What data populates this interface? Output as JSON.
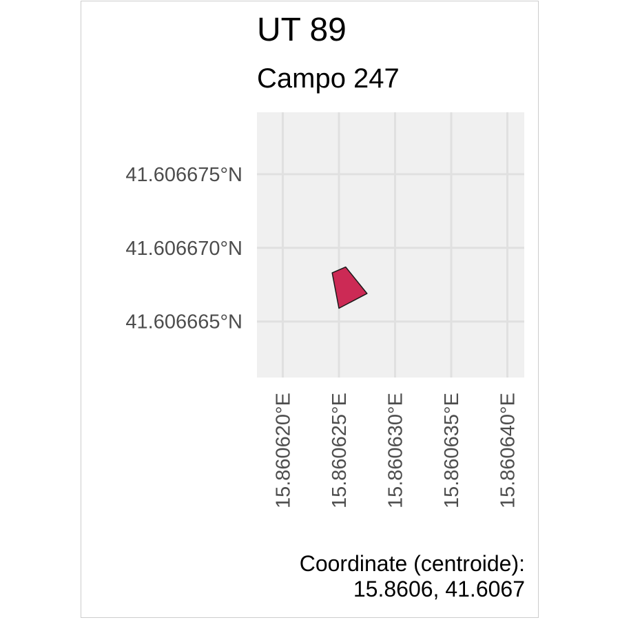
{
  "title": "UT 89",
  "subtitle": "Campo 247",
  "caption": {
    "line1": "Coordinate (centroide):",
    "line2": "15.8606, 41.6067"
  },
  "colors": {
    "panel_background": "#f0f0f0",
    "grid": "#e0e0e0",
    "polygon_fill": "#cc2a55",
    "polygon_stroke": "#1a1a1a"
  },
  "chart_data": {
    "type": "map",
    "xlim": [
      15.8606177,
      15.8606415
    ],
    "ylim": [
      41.6066612,
      41.6066792
    ],
    "x_ticks": [
      {
        "value": 15.86062,
        "label": "15.860620°E"
      },
      {
        "value": 15.860625,
        "label": "15.860625°E"
      },
      {
        "value": 15.86063,
        "label": "15.860630°E"
      },
      {
        "value": 15.860635,
        "label": "15.860635°E"
      },
      {
        "value": 15.86064,
        "label": "15.860640°E"
      }
    ],
    "y_ticks": [
      {
        "value": 41.606665,
        "label": "41.606665°N"
      },
      {
        "value": 41.60667,
        "label": "41.606670°N"
      },
      {
        "value": 41.606675,
        "label": "41.606675°N"
      }
    ],
    "grid": true,
    "polygon": [
      [
        15.8606244,
        41.6066683
      ],
      [
        15.8606256,
        41.6066687
      ],
      [
        15.8606275,
        41.6066669
      ],
      [
        15.860625,
        41.6066659
      ]
    ]
  }
}
